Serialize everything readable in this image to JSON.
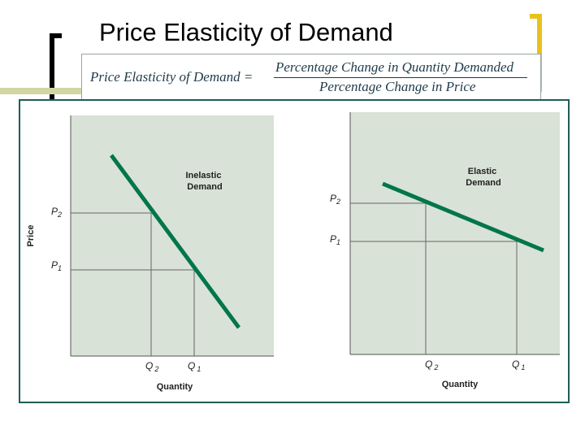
{
  "slide": {
    "title": "Price Elasticity of Demand"
  },
  "formula": {
    "lhs": "Price Elasticity of Demand =",
    "numerator": "Percentage Change in Quantity Demanded",
    "denominator": "Percentage Change in Price"
  },
  "colors": {
    "accent_gold": "#e8c21c",
    "demand_line": "#00764a",
    "plot_background": "#d9e2d6",
    "frame_border": "#1e5e55",
    "band_olive": "#d3d6a3"
  },
  "left_panel": {
    "curve_label_line1": "Inelastic",
    "curve_label_line2": "Demand",
    "y_axis_label": "Price",
    "x_axis_label": "Quantity",
    "p2": "P",
    "p2_sub": "2",
    "p1": "P",
    "p1_sub": "1",
    "q2": "Q",
    "q2_sub": "2",
    "q1": "Q",
    "q1_sub": "1"
  },
  "right_panel": {
    "curve_label_line1": "Elastic",
    "curve_label_line2": "Demand",
    "x_axis_label": "Quantity",
    "p2": "P",
    "p2_sub": "2",
    "p1": "P",
    "p1_sub": "1",
    "q2": "Q",
    "q2_sub": "2",
    "q1": "Q",
    "q1_sub": "1"
  }
}
